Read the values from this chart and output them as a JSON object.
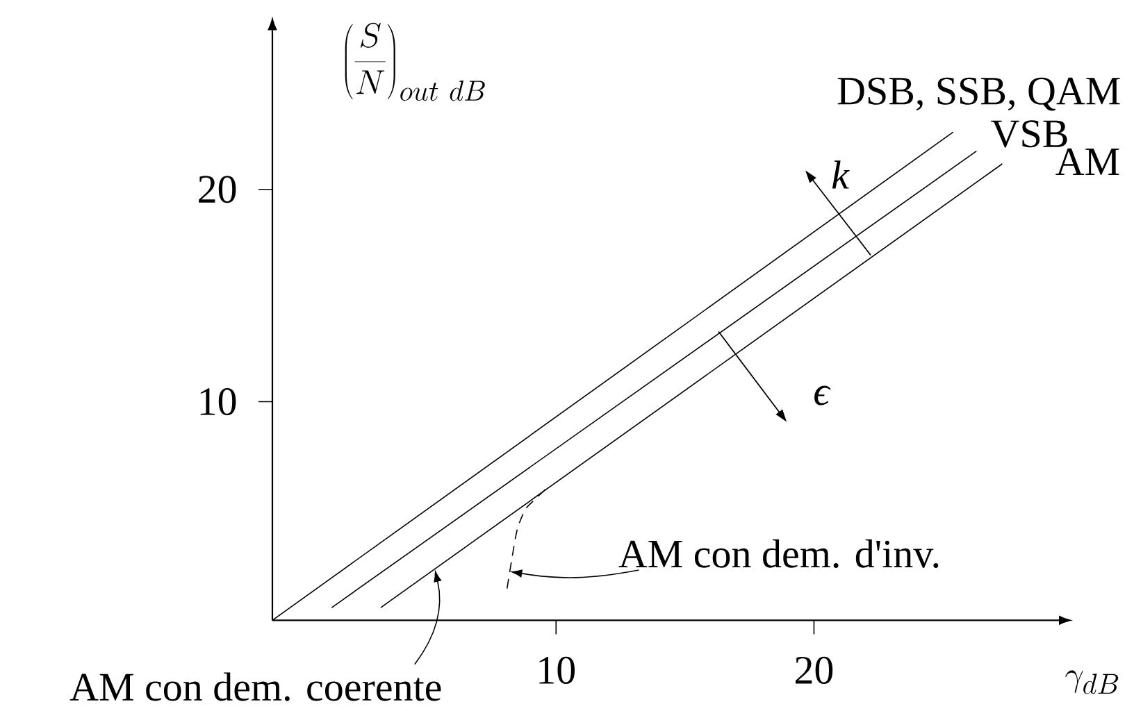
{
  "chart_data": {
    "type": "line",
    "xlabel": "\\gamma_{dB}",
    "ylabel": "\\left(\\frac{S}{N}\\right)_{out\\ dB}",
    "xlim": [
      -1,
      29.5
    ],
    "ylim": [
      -0.3,
      27.5
    ],
    "xticks": [
      10,
      20
    ],
    "yticks": [
      10,
      20
    ],
    "series": [
      {
        "name": "DSB, SSB, QAM",
        "color": "#000000",
        "x": [
          -1,
          25.4
        ],
        "values": [
          -0.3,
          22.7
        ]
      },
      {
        "name": "VSB",
        "color": "#000000",
        "x": [
          1.3,
          26.3
        ],
        "values": [
          0.3,
          21.8
        ]
      },
      {
        "name": "AM",
        "color": "#000000",
        "x": [
          3.2,
          27.3
        ],
        "values": [
          0.3,
          21.2
        ]
      },
      {
        "color": "#000000",
        "line_style": "dashed",
        "x": [
          8.1,
          8.3,
          8.5,
          8.8,
          9.1,
          9.7
        ],
        "values": [
          1.2,
          2.7,
          4.0,
          4.9,
          5.3,
          6.0
        ]
      }
    ],
    "annotations": [
      {
        "text": "k",
        "x": 22.2,
        "y": 16.9
      },
      {
        "text": "ϵ",
        "x": 16.3,
        "y": 13.3
      },
      {
        "text": "AM con dem. d'inv.",
        "x": 8.2,
        "y": 2.0
      },
      {
        "text": "AM con dem. coerente",
        "x": 5.3,
        "y": 2.1
      }
    ]
  }
}
